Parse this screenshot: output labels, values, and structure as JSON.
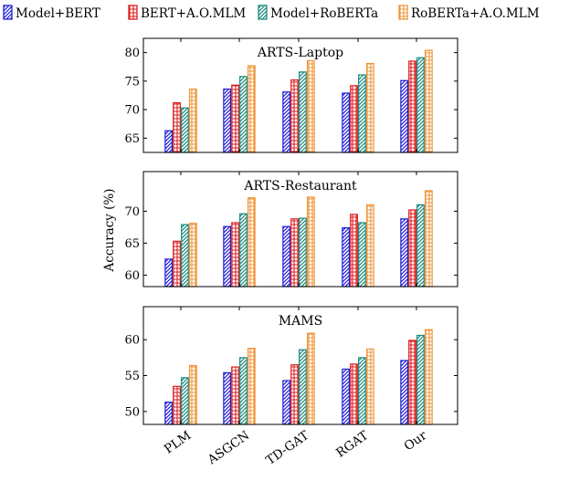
{
  "chart_data": {
    "type": "bar",
    "categories": [
      "PLM",
      "ASGCN",
      "TD-GAT",
      "RGAT",
      "Our"
    ],
    "ylabel": "Accuracy (%)",
    "legend": {
      "placement": "top",
      "entries": [
        "Model+BERT",
        "BERT+A.O.MLM",
        "Model+RoBERTa",
        "RoBERTa+A.O.MLM"
      ]
    },
    "series_colors": [
      "#1f1fd6",
      "#dd1c1c",
      "#1a8a80",
      "#f0953a"
    ],
    "series_patterns": [
      "diagonal-hatch",
      "grid",
      "diagonal-hatch",
      "grid"
    ],
    "panels": [
      {
        "title": "ARTS-Laptop",
        "ylim": [
          62.5,
          82.5
        ],
        "yticks": [
          65,
          70,
          75,
          80
        ],
        "series": [
          {
            "name": "Model+BERT",
            "values": [
              66.3,
              73.6,
              73.1,
              72.9,
              75.1
            ]
          },
          {
            "name": "BERT+A.O.MLM",
            "values": [
              71.2,
              74.3,
              75.2,
              74.2,
              78.5
            ]
          },
          {
            "name": "Model+RoBERTa",
            "values": [
              70.3,
              75.8,
              76.6,
              76.1,
              79.1
            ]
          },
          {
            "name": "RoBERTa+A.O.MLM",
            "values": [
              73.6,
              77.7,
              78.6,
              78.1,
              80.4
            ]
          }
        ]
      },
      {
        "title": "ARTS-Restaurant",
        "ylim": [
          58.2,
          76.2
        ],
        "yticks": [
          60,
          65,
          70
        ],
        "series": [
          {
            "name": "Model+BERT",
            "values": [
              62.5,
              67.6,
              67.6,
              67.4,
              68.8
            ]
          },
          {
            "name": "BERT+A.O.MLM",
            "values": [
              65.3,
              68.2,
              68.8,
              69.5,
              70.2
            ]
          },
          {
            "name": "Model+RoBERTa",
            "values": [
              67.9,
              69.6,
              68.9,
              68.2,
              71.0
            ]
          },
          {
            "name": "RoBERTa+A.O.MLM",
            "values": [
              68.1,
              72.1,
              72.2,
              71.0,
              73.2
            ]
          }
        ]
      },
      {
        "title": "MAMS",
        "ylim": [
          48.2,
          64.6
        ],
        "yticks": [
          50,
          55,
          60
        ],
        "series": [
          {
            "name": "Model+BERT",
            "values": [
              51.3,
              55.4,
              54.3,
              55.9,
              57.1
            ]
          },
          {
            "name": "BERT+A.O.MLM",
            "values": [
              53.5,
              56.2,
              56.5,
              56.6,
              59.9
            ]
          },
          {
            "name": "Model+RoBERTa",
            "values": [
              54.7,
              57.5,
              58.6,
              57.5,
              60.6
            ]
          },
          {
            "name": "RoBERTa+A.O.MLM",
            "values": [
              56.4,
              58.8,
              60.9,
              58.7,
              61.4
            ]
          }
        ]
      }
    ]
  }
}
